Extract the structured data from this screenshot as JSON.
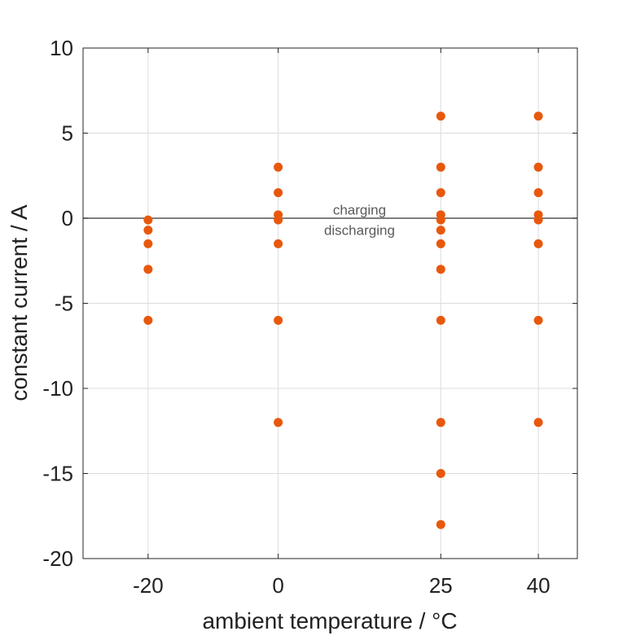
{
  "chart_data": {
    "type": "scatter",
    "title": "",
    "xlabel": "ambient temperature / °C",
    "ylabel": "constant current / A",
    "xlim": [
      -30,
      46
    ],
    "ylim": [
      -20,
      10
    ],
    "xticks": [
      -20,
      0,
      25,
      40
    ],
    "yticks": [
      10,
      5,
      0,
      -5,
      -10,
      -15,
      -20
    ],
    "grid": true,
    "marker_color": "#e8580c",
    "reference_line": {
      "y": 0,
      "color": "#555555"
    },
    "annotations": [
      {
        "text": "charging",
        "x": 12.5,
        "y": 0.5
      },
      {
        "text": "discharging",
        "x": 12.5,
        "y": -0.7
      }
    ],
    "series": [
      {
        "points": [
          {
            "x": -20,
            "y": -0.1
          },
          {
            "x": -20,
            "y": -0.7
          },
          {
            "x": -20,
            "y": -1.5
          },
          {
            "x": -20,
            "y": -3
          },
          {
            "x": -20,
            "y": -6
          },
          {
            "x": 0,
            "y": 3
          },
          {
            "x": 0,
            "y": 1.5
          },
          {
            "x": 0,
            "y": 0.2
          },
          {
            "x": 0,
            "y": -0.1
          },
          {
            "x": 0,
            "y": -1.5
          },
          {
            "x": 0,
            "y": -6
          },
          {
            "x": 0,
            "y": -12
          },
          {
            "x": 25,
            "y": 6
          },
          {
            "x": 25,
            "y": 3
          },
          {
            "x": 25,
            "y": 1.5
          },
          {
            "x": 25,
            "y": 0.2
          },
          {
            "x": 25,
            "y": -0.1
          },
          {
            "x": 25,
            "y": -0.7
          },
          {
            "x": 25,
            "y": -1.5
          },
          {
            "x": 25,
            "y": -3
          },
          {
            "x": 25,
            "y": -6
          },
          {
            "x": 25,
            "y": -12
          },
          {
            "x": 25,
            "y": -15
          },
          {
            "x": 25,
            "y": -18
          },
          {
            "x": 40,
            "y": 6
          },
          {
            "x": 40,
            "y": 3
          },
          {
            "x": 40,
            "y": 1.5
          },
          {
            "x": 40,
            "y": 0.2
          },
          {
            "x": 40,
            "y": -0.1
          },
          {
            "x": 40,
            "y": -1.5
          },
          {
            "x": 40,
            "y": -6
          },
          {
            "x": 40,
            "y": -12
          }
        ]
      }
    ]
  }
}
